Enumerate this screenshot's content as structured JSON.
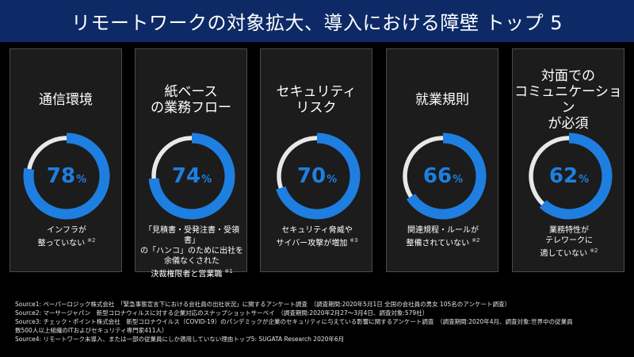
{
  "header": {
    "title": "リモートワークの対象拡大、導入における障壁 トップ 5"
  },
  "colors": {
    "header_bg": "#0d2a66",
    "accent": "#1e7fe0",
    "track": "#e8e8e8",
    "card_border": "#4a4a4a"
  },
  "chart_data": {
    "type": "pie",
    "title": "リモートワークの対象拡大、導入における障壁 トップ 5",
    "unit": "%",
    "categories": [
      "通信環境",
      "紙ベース\nの業務フロー",
      "セキュリティ\nリスク",
      "就業規則",
      "対面での\nコミュニケーション\nが必須"
    ],
    "values": [
      78,
      74,
      70,
      66,
      62
    ],
    "notes": [
      "インフラが\n整っていない",
      "「見積書・受発注書・受領書」\nの「ハンコ」のために出社を\n余儀なくされた\n決裁権限者と営業職",
      "セキュリティ脅威や\nサイバー攻撃が増加",
      "関連規程・ルールが\n整備されていない",
      "業務特性が\nテレワークに\n適していない"
    ],
    "refs": [
      "※2",
      "※1",
      "※3",
      "※2",
      "※2"
    ]
  },
  "sources": [
    "Source1: ペーパーロジック株式会社　「緊急事態宣言下における会社員の出社状況」に関するアンケート調査　（調査期間:2020年5月1日 全国の会社員の男女 105名のアンケート調査）",
    "Source2: マーサージャパン　新型コロナウィルスに対する企業対応のスナップショットサーベイ　（調査期間:2020年2月27～3月4日、調査対象:579社）",
    "Source3: チェック・ポイント株式会社　新型コロナウイルス（COVID-19）のパンデミックが企業のセキュリティに与えている影響に関するアンケート調査　（調査期間:2020年4月、調査対象:世界中の従業員",
    "数500人以上組織のITおよびセキュリティ専門家411人）",
    "Source4: リモートワーク未導入、または一部の従業員にしか適用していない理由トップ5: SUGATA Research 2020年6月"
  ]
}
